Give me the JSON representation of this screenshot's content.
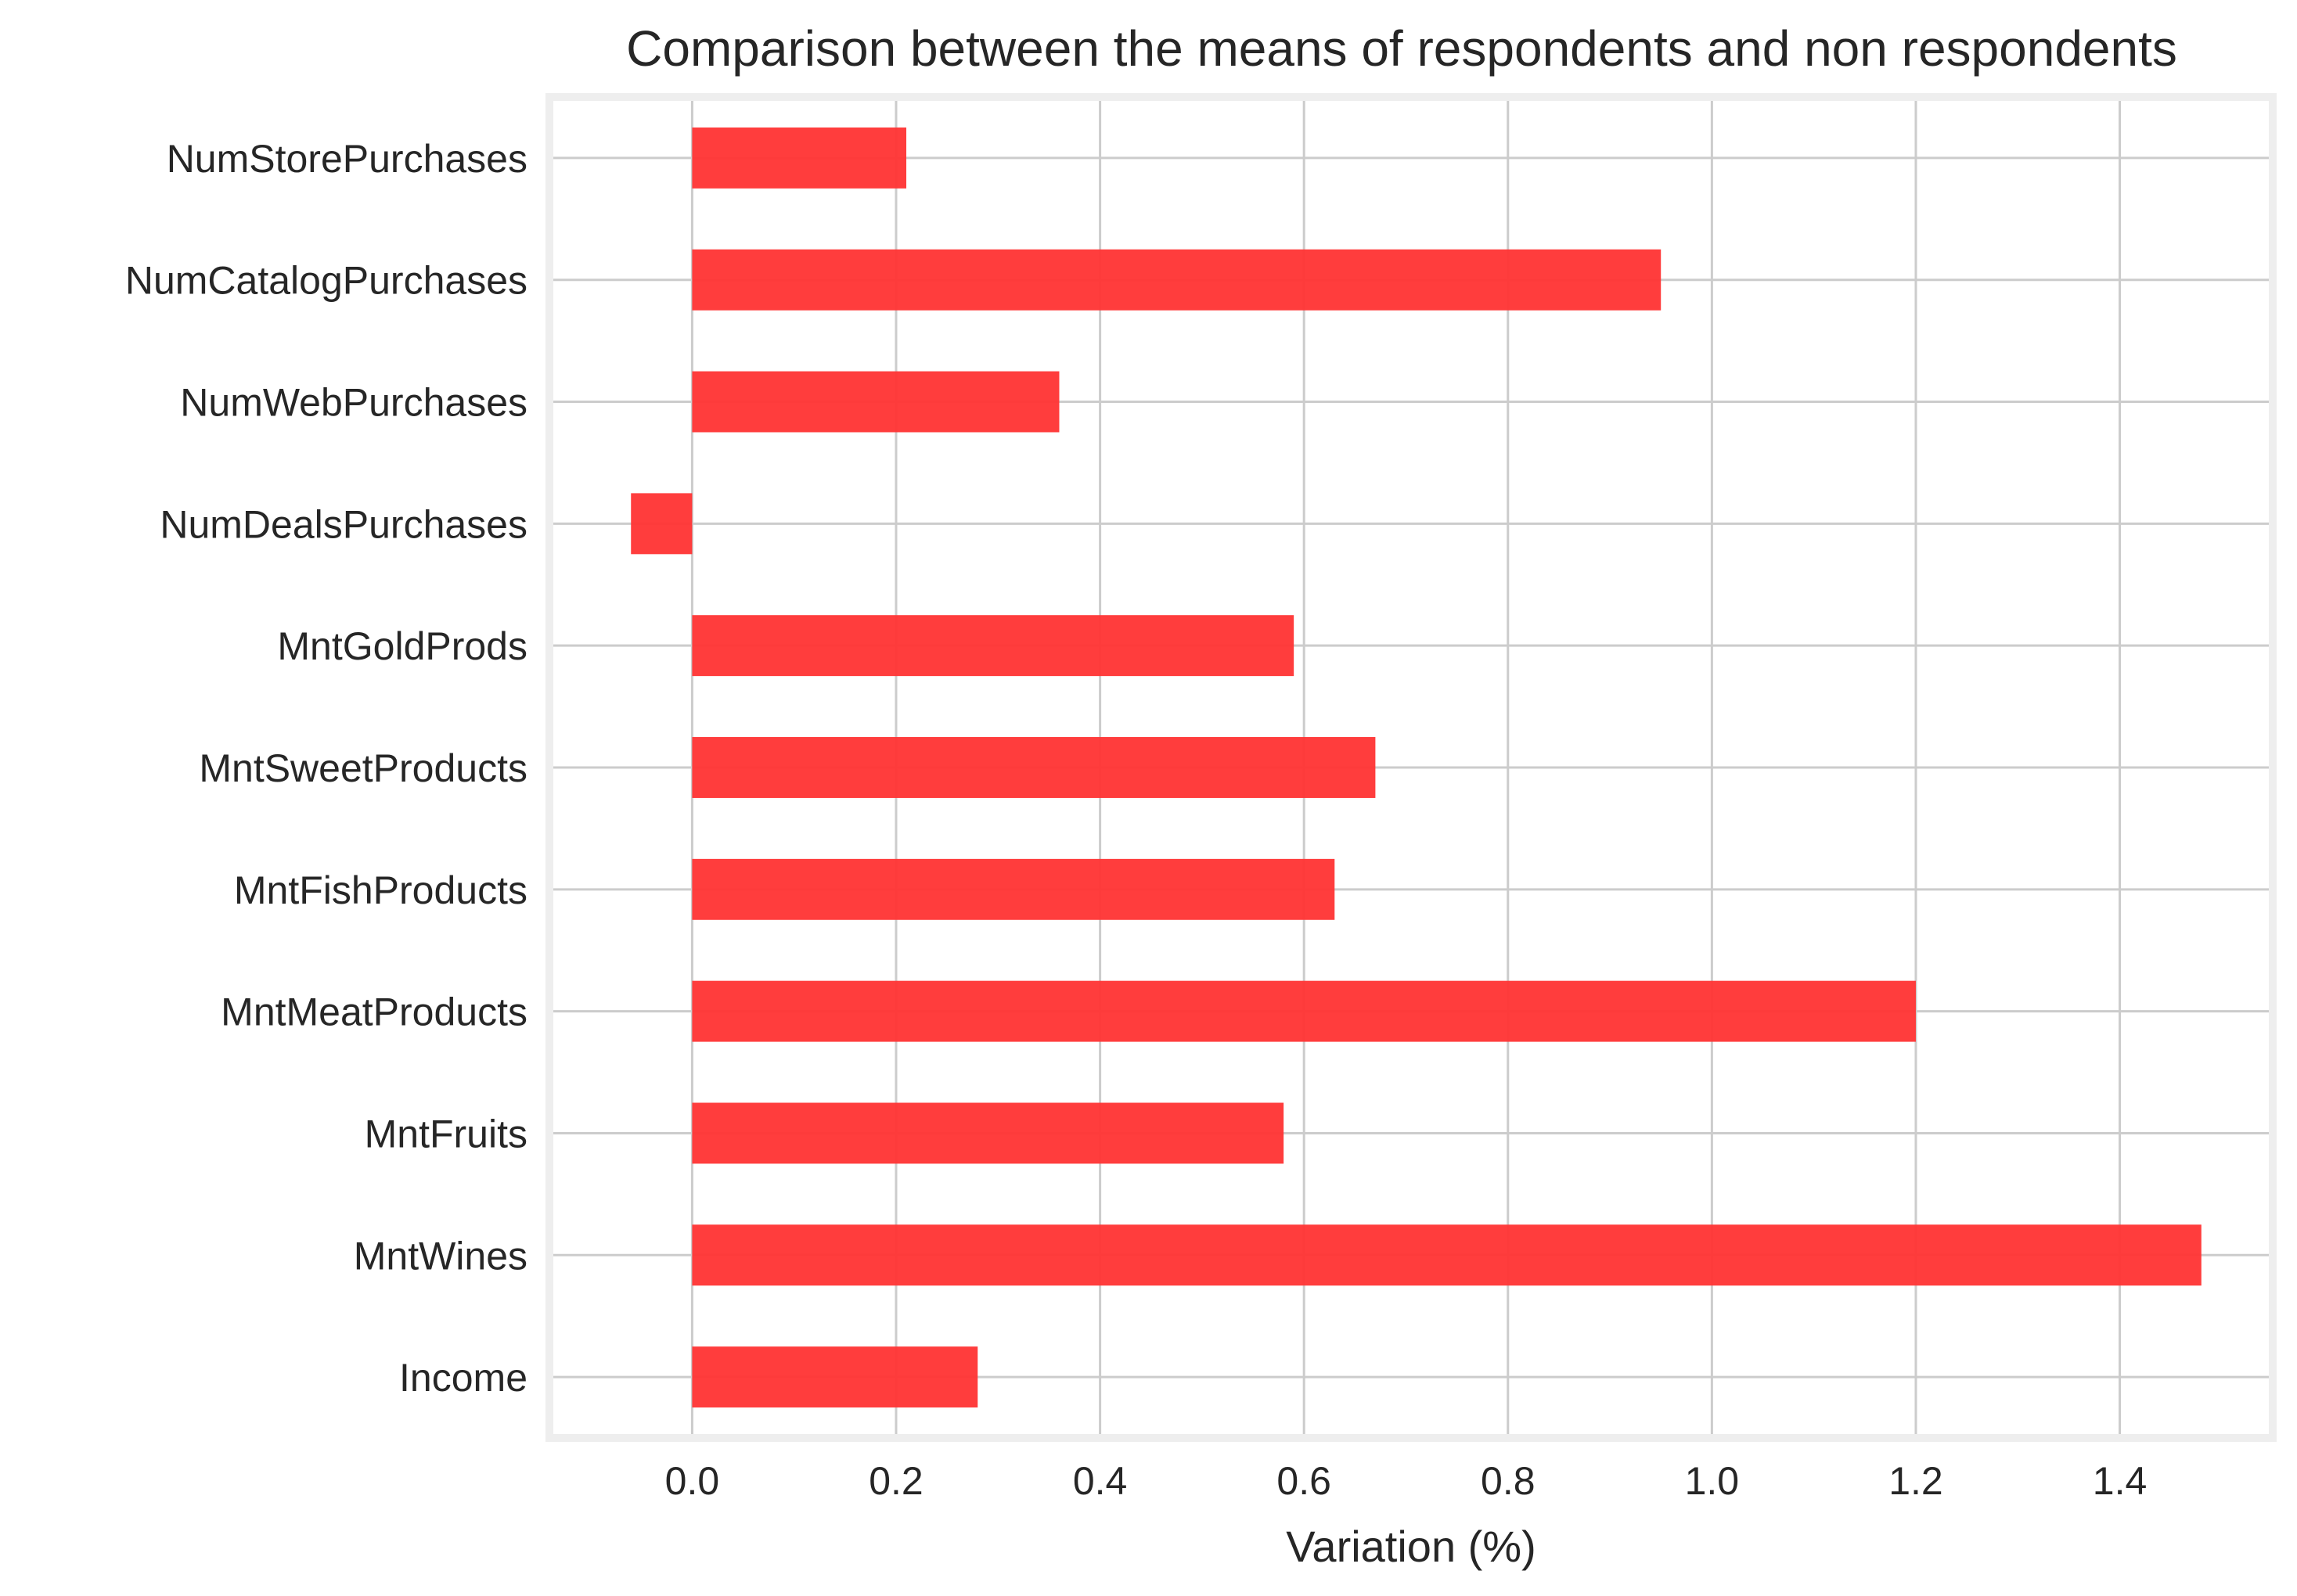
{
  "chart_data": {
    "type": "bar",
    "orientation": "horizontal",
    "title": "Comparison between the means of respondents and non respondents",
    "xlabel": "Variation (%)",
    "ylabel": "",
    "categories": [
      "Income",
      "MntWines",
      "MntFruits",
      "MntMeatProducts",
      "MntFishProducts",
      "MntSweetProducts",
      "MntGoldProds",
      "NumDealsPurchases",
      "NumWebPurchases",
      "NumCatalogPurchases",
      "NumStorePurchases"
    ],
    "values": [
      0.28,
      1.48,
      0.58,
      1.2,
      0.63,
      0.67,
      0.59,
      -0.06,
      0.36,
      0.95,
      0.21
    ],
    "xlim": [
      -0.14,
      1.55
    ],
    "xticks": [
      0.0,
      0.2,
      0.4,
      0.6,
      0.8,
      1.0,
      1.2,
      1.4
    ],
    "xtick_labels": [
      "0.0",
      "0.2",
      "0.4",
      "0.6",
      "0.8",
      "1.0",
      "1.2",
      "1.4"
    ],
    "grid": true,
    "colors": {
      "bar": "#ff3333",
      "grid": "#cccccc",
      "frame": "#eeeeee",
      "text": "#262626"
    }
  }
}
